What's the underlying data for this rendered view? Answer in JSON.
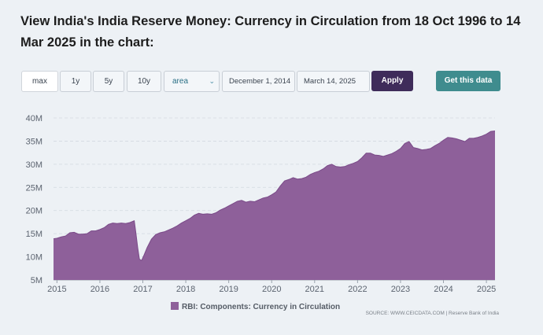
{
  "page": {
    "title": "View India's India Reserve Money: Currency in Circulation from 18 Oct 1996 to 14 Mar 2025 in the chart:"
  },
  "controls": {
    "ranges": [
      "max",
      "1y",
      "5y",
      "10y"
    ],
    "chart_type": "area",
    "start_date": "December 1, 2014",
    "end_date": "March 14, 2025",
    "apply_label": "Apply",
    "get_data_label": "Get this data"
  },
  "source": "SOURCE: WWW.CEICDATA.COM | Reserve Bank of India",
  "colors": {
    "area_fill": "#8e609a",
    "area_line": "#7a4a88",
    "apply_bg": "#3f2c5a",
    "get_data_bg": "#3f8c8e"
  },
  "chart_data": {
    "type": "area",
    "title": "",
    "xlabel": "",
    "ylabel": "",
    "xlim": [
      2014.92,
      2025.2
    ],
    "ylim": [
      5,
      40
    ],
    "y_ticks": [
      5,
      10,
      15,
      20,
      25,
      30,
      35,
      40
    ],
    "y_tick_labels": [
      "5M",
      "10M",
      "15M",
      "20M",
      "25M",
      "30M",
      "35M",
      "40M"
    ],
    "x_ticks": [
      2015,
      2016,
      2017,
      2018,
      2019,
      2020,
      2021,
      2022,
      2023,
      2024,
      2025
    ],
    "x_tick_labels": [
      "2015",
      "2016",
      "2017",
      "2018",
      "2019",
      "2020",
      "2021",
      "2022",
      "2023",
      "2024",
      "2025"
    ],
    "legend": "bottom",
    "series": [
      {
        "name": "RBI: Components: Currency in Circulation",
        "x": [
          2014.92,
          2015.0,
          2015.1,
          2015.2,
          2015.3,
          2015.4,
          2015.5,
          2015.6,
          2015.7,
          2015.8,
          2015.9,
          2016.0,
          2016.1,
          2016.2,
          2016.3,
          2016.4,
          2016.5,
          2016.6,
          2016.7,
          2016.8,
          2016.84,
          2016.88,
          2016.92,
          2016.97,
          2017.02,
          2017.1,
          2017.2,
          2017.3,
          2017.4,
          2017.5,
          2017.6,
          2017.7,
          2017.8,
          2017.9,
          2018.0,
          2018.1,
          2018.2,
          2018.3,
          2018.4,
          2018.5,
          2018.6,
          2018.7,
          2018.8,
          2018.9,
          2019.0,
          2019.1,
          2019.2,
          2019.3,
          2019.4,
          2019.5,
          2019.6,
          2019.7,
          2019.8,
          2019.9,
          2020.0,
          2020.1,
          2020.2,
          2020.3,
          2020.4,
          2020.5,
          2020.6,
          2020.7,
          2020.8,
          2020.9,
          2021.0,
          2021.1,
          2021.2,
          2021.3,
          2021.4,
          2021.5,
          2021.6,
          2021.7,
          2021.8,
          2021.9,
          2022.0,
          2022.1,
          2022.2,
          2022.3,
          2022.4,
          2022.5,
          2022.6,
          2022.7,
          2022.8,
          2022.9,
          2023.0,
          2023.1,
          2023.2,
          2023.3,
          2023.4,
          2023.5,
          2023.6,
          2023.7,
          2023.8,
          2023.9,
          2024.0,
          2024.1,
          2024.2,
          2024.3,
          2024.4,
          2024.5,
          2024.6,
          2024.7,
          2024.8,
          2024.9,
          2025.0,
          2025.1,
          2025.2
        ],
        "values": [
          13.9,
          14.0,
          14.3,
          14.5,
          15.2,
          15.3,
          14.9,
          14.9,
          15.0,
          15.6,
          15.6,
          15.9,
          16.3,
          17.0,
          17.3,
          17.2,
          17.3,
          17.2,
          17.4,
          17.8,
          15.0,
          12.0,
          9.5,
          9.2,
          10.2,
          12.0,
          13.8,
          14.8,
          15.2,
          15.4,
          15.8,
          16.2,
          16.7,
          17.3,
          17.8,
          18.3,
          19.0,
          19.4,
          19.2,
          19.3,
          19.2,
          19.5,
          20.1,
          20.5,
          21.0,
          21.5,
          22.0,
          22.2,
          21.8,
          22.0,
          21.9,
          22.3,
          22.7,
          22.9,
          23.4,
          24.0,
          25.3,
          26.4,
          26.7,
          27.1,
          26.8,
          26.9,
          27.2,
          27.8,
          28.2,
          28.5,
          29.0,
          29.7,
          30.0,
          29.5,
          29.4,
          29.5,
          29.9,
          30.2,
          30.6,
          31.4,
          32.4,
          32.4,
          32.0,
          31.9,
          31.7,
          32.0,
          32.3,
          32.8,
          33.4,
          34.5,
          34.9,
          33.6,
          33.4,
          33.1,
          33.2,
          33.4,
          34.0,
          34.5,
          35.2,
          35.8,
          35.7,
          35.5,
          35.2,
          34.9,
          35.6,
          35.6,
          35.8,
          36.1,
          36.5,
          37.1,
          37.2
        ]
      }
    ]
  }
}
